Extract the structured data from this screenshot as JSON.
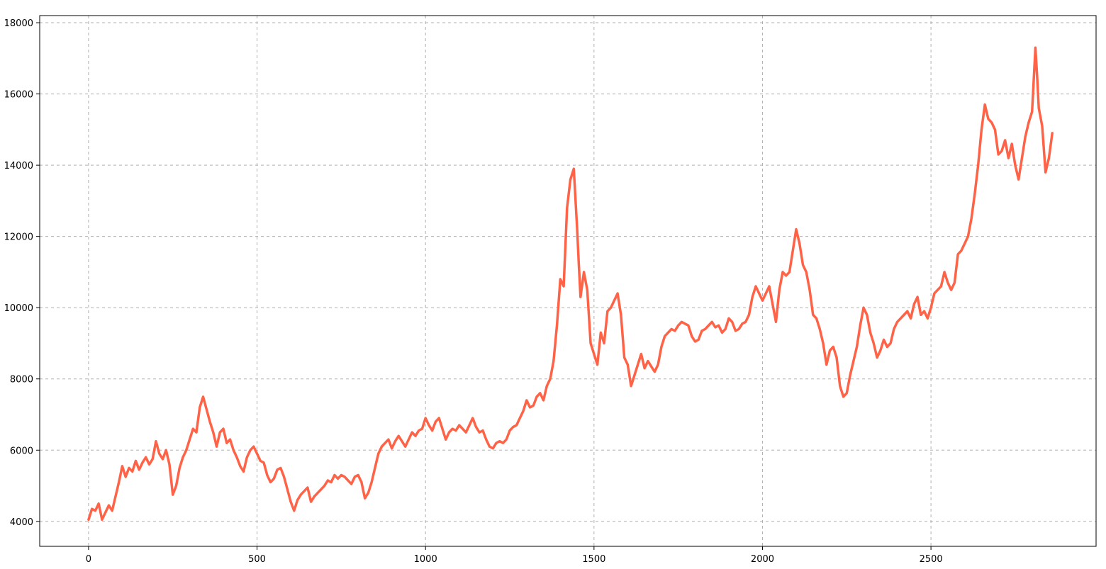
{
  "chart_data": {
    "type": "line",
    "title": "",
    "xlabel": "",
    "ylabel": "",
    "xlim": [
      -145,
      2990
    ],
    "ylim": [
      3300,
      18200
    ],
    "xticks": [
      0,
      500,
      1000,
      1500,
      2000,
      2500
    ],
    "yticks": [
      4000,
      6000,
      8000,
      10000,
      12000,
      14000,
      16000,
      18000
    ],
    "xtick_labels": [
      "0",
      "500",
      "1000",
      "1500",
      "2000",
      "2500"
    ],
    "ytick_labels": [
      "4000",
      "6000",
      "8000",
      "10000",
      "12000",
      "14000",
      "16000",
      "18000"
    ],
    "grid": true,
    "legend": "none",
    "colors": {
      "line": "#ff6347",
      "grid": "#b0b0b0",
      "axes": "#000000"
    },
    "series": [
      {
        "name": "",
        "x": [
          0,
          10,
          20,
          30,
          40,
          50,
          60,
          70,
          80,
          90,
          100,
          110,
          120,
          130,
          140,
          150,
          160,
          170,
          180,
          190,
          200,
          210,
          220,
          230,
          240,
          250,
          260,
          270,
          280,
          290,
          300,
          310,
          320,
          330,
          340,
          350,
          360,
          370,
          380,
          390,
          400,
          410,
          420,
          430,
          440,
          450,
          460,
          470,
          480,
          490,
          500,
          510,
          520,
          530,
          540,
          550,
          560,
          570,
          580,
          590,
          600,
          610,
          620,
          630,
          640,
          650,
          660,
          670,
          680,
          690,
          700,
          710,
          720,
          730,
          740,
          750,
          760,
          770,
          780,
          790,
          800,
          810,
          820,
          830,
          840,
          850,
          860,
          870,
          880,
          890,
          900,
          910,
          920,
          930,
          940,
          950,
          960,
          970,
          980,
          990,
          1000,
          1010,
          1020,
          1030,
          1040,
          1050,
          1060,
          1070,
          1080,
          1090,
          1100,
          1110,
          1120,
          1130,
          1140,
          1150,
          1160,
          1170,
          1180,
          1190,
          1200,
          1210,
          1220,
          1230,
          1240,
          1250,
          1260,
          1270,
          1280,
          1290,
          1300,
          1310,
          1320,
          1330,
          1340,
          1350,
          1360,
          1370,
          1380,
          1390,
          1400,
          1410,
          1420,
          1430,
          1440,
          1450,
          1455,
          1460,
          1470,
          1480,
          1490,
          1500,
          1510,
          1520,
          1530,
          1540,
          1550,
          1560,
          1570,
          1580,
          1590,
          1600,
          1610,
          1620,
          1630,
          1640,
          1650,
          1660,
          1670,
          1680,
          1690,
          1700,
          1710,
          1720,
          1730,
          1740,
          1750,
          1760,
          1770,
          1780,
          1790,
          1800,
          1810,
          1820,
          1830,
          1840,
          1850,
          1860,
          1870,
          1880,
          1890,
          1900,
          1910,
          1920,
          1930,
          1940,
          1950,
          1960,
          1970,
          1980,
          1990,
          2000,
          2010,
          2020,
          2030,
          2040,
          2050,
          2060,
          2070,
          2080,
          2090,
          2100,
          2110,
          2120,
          2130,
          2140,
          2150,
          2160,
          2170,
          2180,
          2190,
          2200,
          2210,
          2220,
          2230,
          2240,
          2250,
          2260,
          2270,
          2280,
          2290,
          2300,
          2310,
          2320,
          2330,
          2340,
          2350,
          2360,
          2370,
          2380,
          2390,
          2400,
          2410,
          2420,
          2430,
          2440,
          2450,
          2460,
          2470,
          2480,
          2490,
          2500,
          2510,
          2520,
          2530,
          2540,
          2550,
          2560,
          2570,
          2580,
          2590,
          2600,
          2610,
          2620,
          2630,
          2640,
          2650,
          2660,
          2670,
          2680,
          2690,
          2700,
          2710,
          2720,
          2730,
          2740,
          2750,
          2760,
          2770,
          2780,
          2790,
          2800,
          2810,
          2815,
          2820,
          2830,
          2840,
          2850,
          2860
        ],
        "y": [
          4050,
          4350,
          4300,
          4500,
          4050,
          4250,
          4450,
          4300,
          4700,
          5100,
          5550,
          5250,
          5500,
          5400,
          5700,
          5450,
          5650,
          5800,
          5600,
          5750,
          6250,
          5900,
          5750,
          6000,
          5600,
          4750,
          5000,
          5500,
          5800,
          6000,
          6300,
          6600,
          6500,
          7200,
          7500,
          7150,
          6800,
          6500,
          6100,
          6500,
          6600,
          6200,
          6300,
          6000,
          5800,
          5550,
          5400,
          5800,
          6000,
          6100,
          5900,
          5700,
          5650,
          5300,
          5100,
          5200,
          5450,
          5500,
          5250,
          4900,
          4550,
          4300,
          4600,
          4750,
          4850,
          4950,
          4550,
          4700,
          4800,
          4900,
          5000,
          5150,
          5100,
          5300,
          5200,
          5300,
          5250,
          5150,
          5050,
          5250,
          5300,
          5100,
          4650,
          4800,
          5100,
          5500,
          5900,
          6100,
          6200,
          6300,
          6050,
          6250,
          6400,
          6250,
          6100,
          6300,
          6500,
          6400,
          6550,
          6600,
          6900,
          6700,
          6550,
          6800,
          6900,
          6600,
          6300,
          6500,
          6600,
          6550,
          6700,
          6600,
          6500,
          6700,
          6900,
          6650,
          6500,
          6550,
          6300,
          6100,
          6050,
          6200,
          6250,
          6200,
          6300,
          6550,
          6650,
          6700,
          6900,
          7100,
          7400,
          7200,
          7250,
          7500,
          7600,
          7400,
          7800,
          8000,
          8500,
          9500,
          10800,
          10600,
          12800,
          13600,
          13900,
          12200,
          11200,
          10300,
          11000,
          10500,
          9000,
          8700,
          8400,
          9300,
          9000,
          9900,
          10000,
          10200,
          10400,
          9800,
          8600,
          8400,
          7800,
          8100,
          8400,
          8700,
          8300,
          8500,
          8350,
          8200,
          8400,
          8900,
          9200,
          9300,
          9400,
          9350,
          9500,
          9600,
          9550,
          9500,
          9200,
          9050,
          9100,
          9350,
          9400,
          9500,
          9600,
          9450,
          9500,
          9300,
          9400,
          9700,
          9600,
          9350,
          9400,
          9550,
          9600,
          9800,
          10300,
          10600,
          10400,
          10200,
          10400,
          10600,
          10100,
          9600,
          10500,
          11000,
          10900,
          11000,
          11600,
          12200,
          11800,
          11200,
          11000,
          10500,
          9800,
          9700,
          9400,
          9000,
          8400,
          8800,
          8900,
          8600,
          7800,
          7500,
          7600,
          8100,
          8500,
          8900,
          9500,
          10000,
          9800,
          9300,
          9000,
          8600,
          8800,
          9100,
          8900,
          9000,
          9400,
          9600,
          9700,
          9800,
          9900,
          9700,
          10100,
          10300,
          9800,
          9900,
          9700,
          10000,
          10400,
          10500,
          10600,
          11000,
          10700,
          10500,
          10700,
          11500,
          11600,
          11800,
          12000,
          12500,
          13200,
          14000,
          15000,
          15700,
          15300,
          15200,
          15000,
          14300,
          14400,
          14700,
          14200,
          14600,
          14000,
          13600,
          14200,
          14800,
          15200,
          15500,
          17300,
          16500,
          15600,
          15100,
          13800,
          14200,
          14900
        ]
      }
    ]
  }
}
